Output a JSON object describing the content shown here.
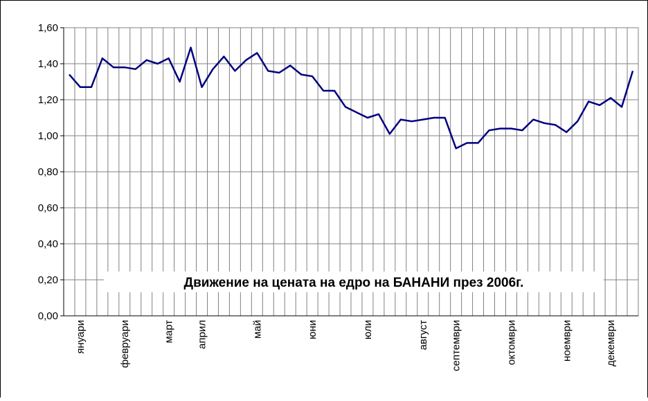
{
  "chart_data": {
    "type": "line",
    "annotation": "Движение на цената на едро на БАНАНИ през 2006г.",
    "categories": [
      null,
      "януари",
      null,
      null,
      null,
      "февруари",
      null,
      null,
      null,
      "март",
      null,
      null,
      "април",
      null,
      null,
      null,
      null,
      "май",
      null,
      null,
      null,
      null,
      "юни",
      null,
      null,
      null,
      null,
      "юли",
      null,
      null,
      null,
      null,
      "август",
      null,
      null,
      "септември",
      null,
      null,
      null,
      null,
      "октомври",
      null,
      null,
      null,
      null,
      "ноември",
      null,
      null,
      null,
      "декември",
      null,
      null
    ],
    "series": [
      {
        "name": "банани",
        "color": "#000080",
        "values": [
          1.34,
          1.27,
          1.27,
          1.43,
          1.38,
          1.38,
          1.37,
          1.42,
          1.4,
          1.43,
          1.3,
          1.49,
          1.27,
          1.37,
          1.44,
          1.36,
          1.42,
          1.46,
          1.36,
          1.35,
          1.39,
          1.34,
          1.33,
          1.25,
          1.25,
          1.16,
          1.13,
          1.1,
          1.12,
          1.01,
          1.09,
          1.08,
          1.09,
          1.1,
          1.1,
          0.93,
          0.96,
          0.96,
          1.03,
          1.04,
          1.04,
          1.03,
          1.09,
          1.07,
          1.06,
          1.02,
          1.08,
          1.19,
          1.17,
          1.21,
          1.16,
          1.36
        ]
      }
    ],
    "ylim": [
      0,
      1.6
    ],
    "yticks": [
      {
        "value": 0,
        "label": "0,00"
      },
      {
        "value": 0.2,
        "label": "0,20"
      },
      {
        "value": 0.4,
        "label": "0,40"
      },
      {
        "value": 0.6,
        "label": "0,60"
      },
      {
        "value": 0.8,
        "label": "0,80"
      },
      {
        "value": 1.0,
        "label": "1,00"
      },
      {
        "value": 1.2,
        "label": "1,20"
      },
      {
        "value": 1.4,
        "label": "1,40"
      },
      {
        "value": 1.6,
        "label": "1,60"
      }
    ],
    "grid": true
  }
}
